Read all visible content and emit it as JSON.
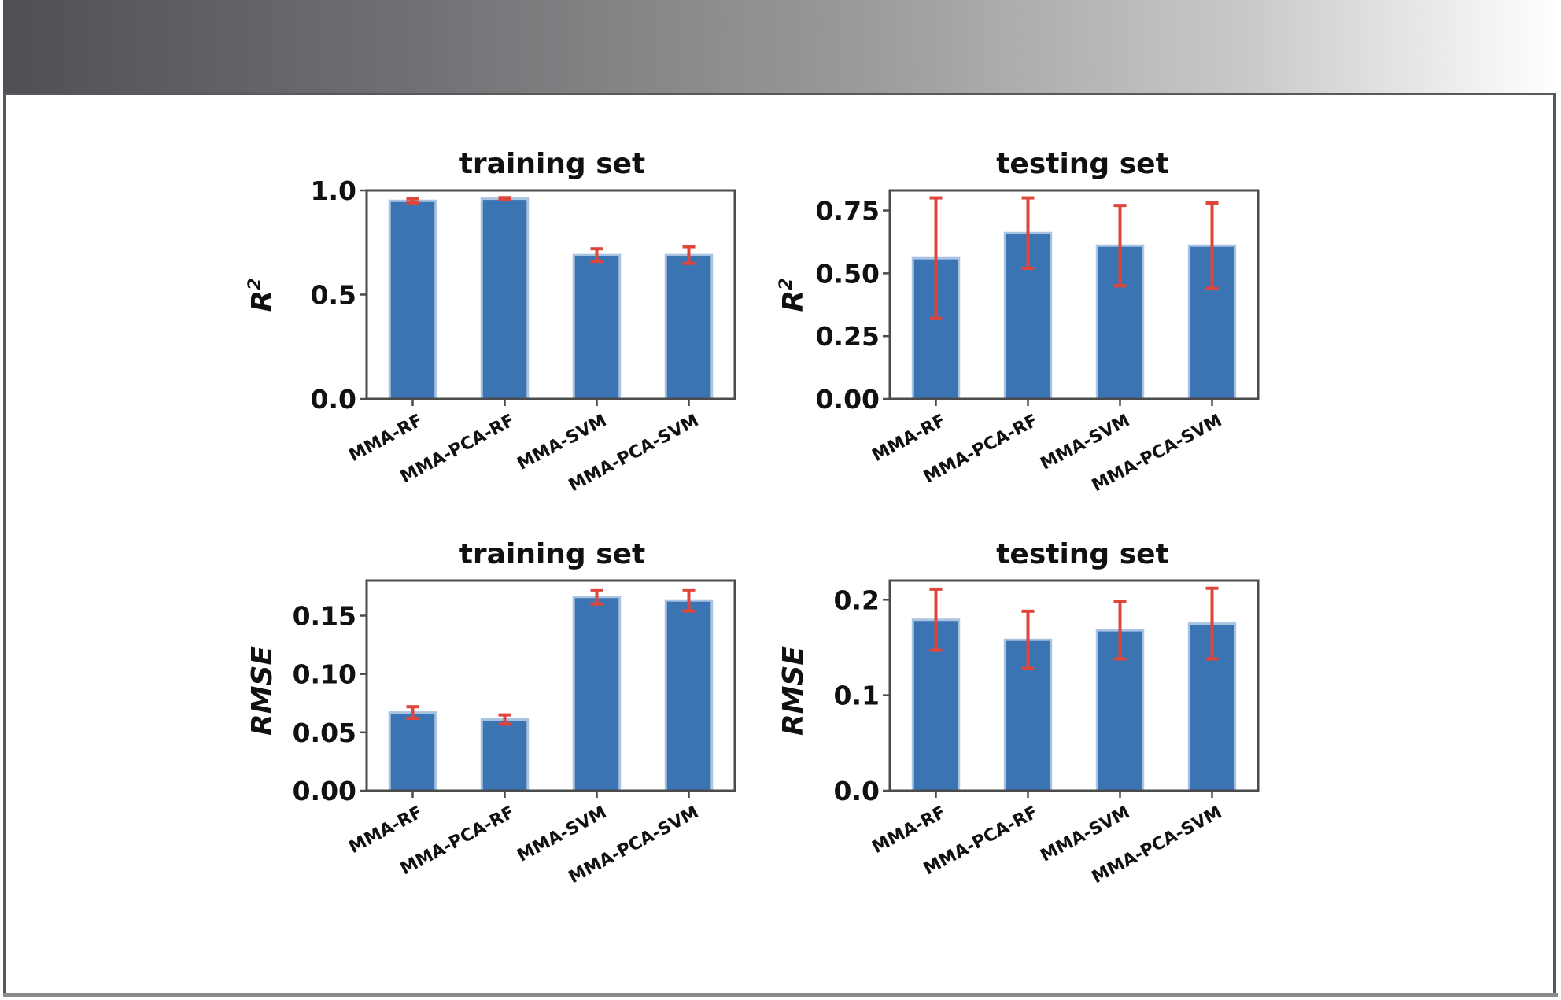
{
  "chart_data": [
    {
      "type": "bar",
      "title": "training set",
      "ylabel": "R2",
      "ylim": [
        0,
        1.0
      ],
      "yticks": [
        0.0,
        0.5,
        1.0
      ],
      "ytick_labels": [
        "0.0",
        "0.5",
        "1.0"
      ],
      "categories": [
        "MMA-RF",
        "MMA-PCA-RF",
        "MMA-SVM",
        "MMA-PCA-SVM"
      ],
      "values": [
        0.95,
        0.96,
        0.69,
        0.69
      ],
      "errors": [
        0.01,
        0.005,
        0.03,
        0.04
      ]
    },
    {
      "type": "bar",
      "title": "testing set",
      "ylabel": "R2",
      "ylim": [
        0,
        0.83
      ],
      "yticks": [
        0.0,
        0.25,
        0.5,
        0.75
      ],
      "ytick_labels": [
        "0.00",
        "0.25",
        "0.50",
        "0.75"
      ],
      "categories": [
        "MMA-RF",
        "MMA-PCA-RF",
        "MMA-SVM",
        "MMA-PCA-SVM"
      ],
      "values": [
        0.56,
        0.66,
        0.61,
        0.61
      ],
      "errors": [
        0.24,
        0.14,
        0.16,
        0.17
      ]
    },
    {
      "type": "bar",
      "title": "training set",
      "ylabel": "RMSE",
      "ylim": [
        0,
        0.18
      ],
      "yticks": [
        0.0,
        0.05,
        0.1,
        0.15
      ],
      "ytick_labels": [
        "0.00",
        "0.05",
        "0.10",
        "0.15"
      ],
      "categories": [
        "MMA-RF",
        "MMA-PCA-RF",
        "MMA-SVM",
        "MMA-PCA-SVM"
      ],
      "values": [
        0.067,
        0.061,
        0.166,
        0.163
      ],
      "errors": [
        0.005,
        0.004,
        0.006,
        0.009
      ]
    },
    {
      "type": "bar",
      "title": "testing set",
      "ylabel": "RMSE",
      "ylim": [
        0,
        0.22
      ],
      "yticks": [
        0.0,
        0.1,
        0.2
      ],
      "ytick_labels": [
        "0.0",
        "0.1",
        "0.2"
      ],
      "categories": [
        "MMA-RF",
        "MMA-PCA-RF",
        "MMA-SVM",
        "MMA-PCA-SVM"
      ],
      "values": [
        0.179,
        0.158,
        0.168,
        0.175
      ],
      "errors": [
        0.032,
        0.03,
        0.03,
        0.037
      ]
    }
  ]
}
